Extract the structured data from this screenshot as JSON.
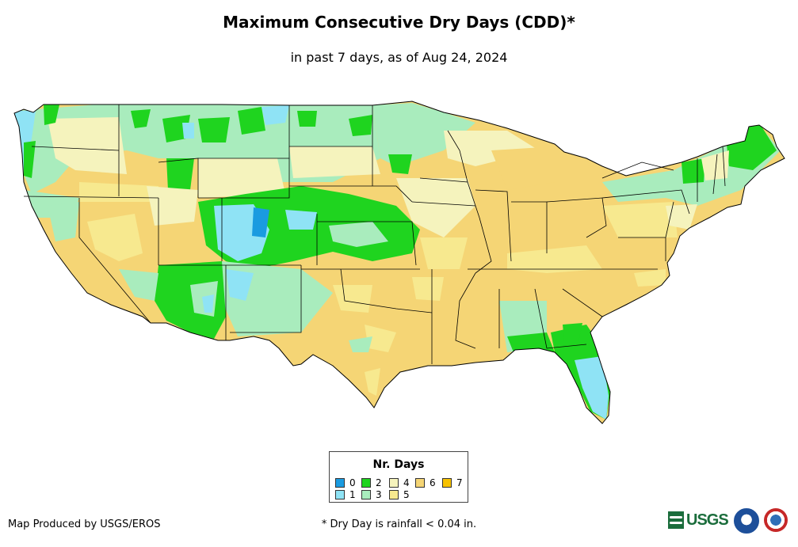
{
  "title": "Maximum Consecutive Dry Days (CDD)*",
  "subtitle": "in past 7 days, as of Aug 24, 2024",
  "legend": {
    "title": "Nr. Days",
    "items": [
      {
        "label": "0",
        "color": "#1a9be0"
      },
      {
        "label": "1",
        "color": "#8fe3f5"
      },
      {
        "label": "2",
        "color": "#1fd41f"
      },
      {
        "label": "3",
        "color": "#a9ecbd"
      },
      {
        "label": "4",
        "color": "#f5f3bd"
      },
      {
        "label": "5",
        "color": "#f7e98f"
      },
      {
        "label": "6",
        "color": "#f5d575"
      },
      {
        "label": "7",
        "color": "#f7c200"
      }
    ]
  },
  "credit": "Map Produced by USGS/EROS",
  "footnote": "* Dry Day is rainfall < 0.04 in.",
  "logos": {
    "usgs": "USGS",
    "noaa": "noaa-logo",
    "nws": "nws-logo"
  },
  "chart_data": {
    "type": "heatmap",
    "title": "Maximum Consecutive Dry Days (CDD)*",
    "subtitle": "in past 7 days, as of Aug 24, 2024",
    "legend_title": "Nr. Days",
    "categories": [
      "0",
      "1",
      "2",
      "3",
      "4",
      "5",
      "6",
      "7"
    ]
  }
}
